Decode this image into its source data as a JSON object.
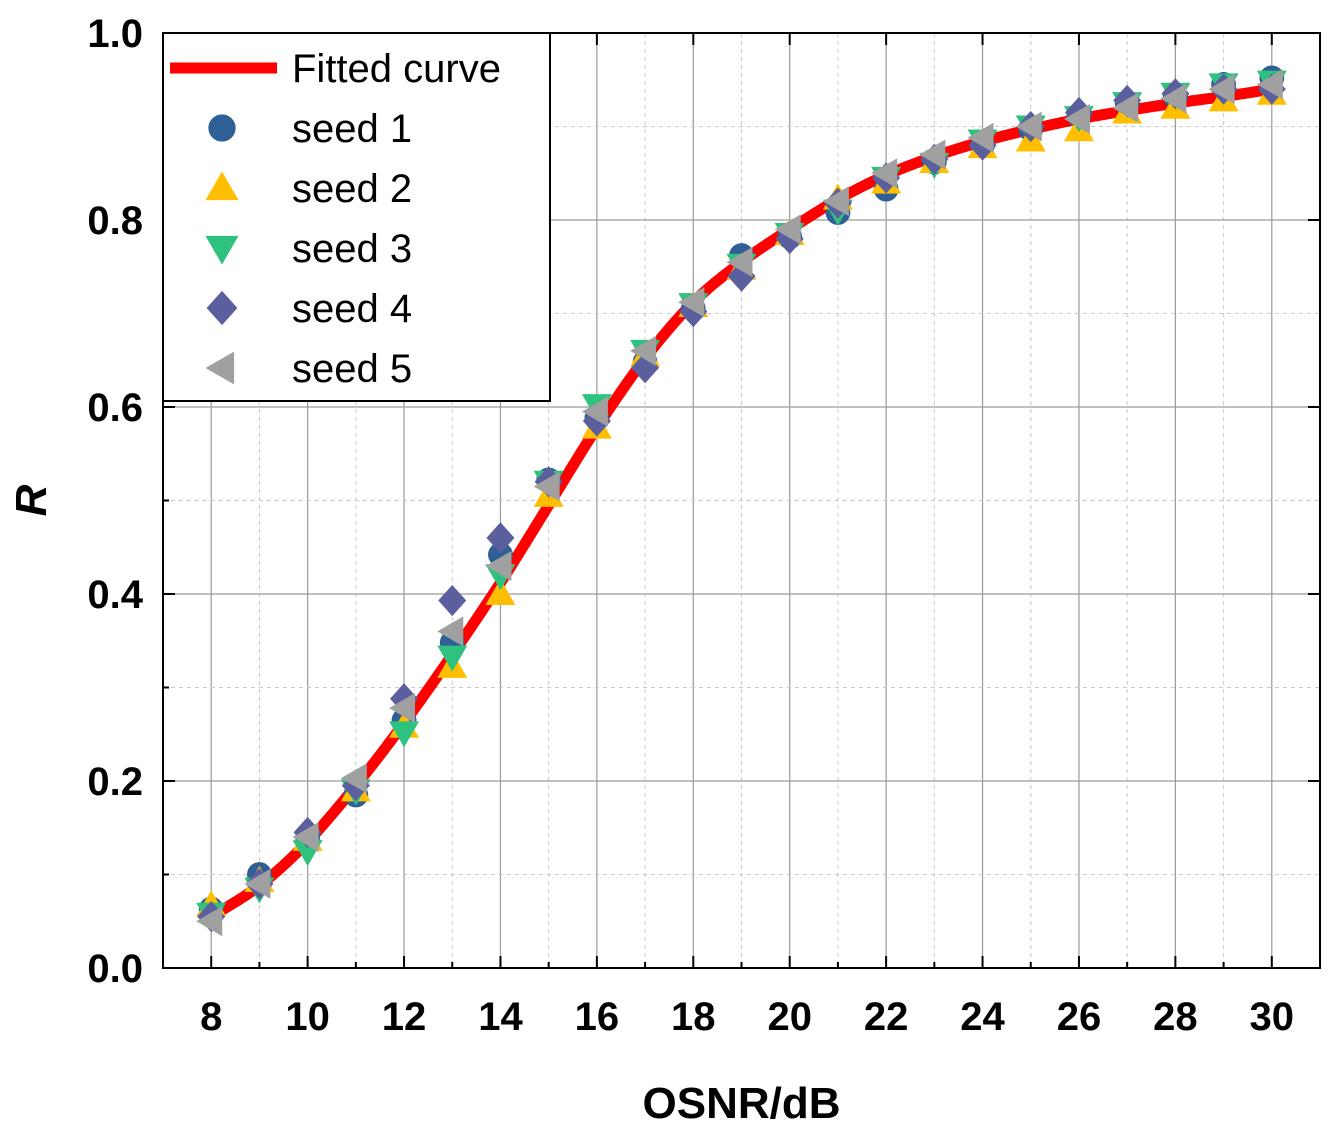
{
  "chart_data": {
    "type": "scatter",
    "title": "",
    "xlabel": "OSNR/dB",
    "ylabel": "R",
    "xlim": [
      7,
      31
    ],
    "ylim": [
      0,
      1.0
    ],
    "xticks": [
      "8",
      "10",
      "12",
      "14",
      "16",
      "18",
      "20",
      "22",
      "24",
      "26",
      "28",
      "30"
    ],
    "yticks": [
      "0.0",
      "0.2",
      "0.4",
      "0.6",
      "0.8",
      "1.0"
    ],
    "grid": true,
    "legend_position": "top-left",
    "x": [
      8,
      9,
      10,
      11,
      12,
      13,
      14,
      15,
      16,
      17,
      18,
      19,
      20,
      21,
      22,
      23,
      24,
      25,
      26,
      27,
      28,
      29,
      30
    ],
    "fitted_curve": {
      "name": "Fitted curve",
      "color": "#ff0000",
      "values": [
        0.055,
        0.088,
        0.135,
        0.195,
        0.262,
        0.335,
        0.412,
        0.495,
        0.578,
        0.652,
        0.712,
        0.755,
        0.79,
        0.822,
        0.848,
        0.868,
        0.884,
        0.897,
        0.908,
        0.917,
        0.925,
        0.932,
        0.94
      ]
    },
    "series": [
      {
        "name": "seed 1",
        "marker": "circle",
        "color": "#2f5f94",
        "values": [
          0.063,
          0.1,
          0.14,
          0.185,
          0.265,
          0.348,
          0.442,
          0.522,
          0.588,
          0.648,
          0.705,
          0.762,
          0.782,
          0.808,
          0.833,
          0.862,
          0.88,
          0.897,
          0.912,
          0.925,
          0.932,
          0.945,
          0.952
        ]
      },
      {
        "name": "seed 2",
        "marker": "triangle-up",
        "color": "#ffbf00",
        "values": [
          0.067,
          0.093,
          0.137,
          0.19,
          0.258,
          0.322,
          0.4,
          0.505,
          0.578,
          0.655,
          0.708,
          0.748,
          0.785,
          0.823,
          0.84,
          0.862,
          0.878,
          0.885,
          0.896,
          0.915,
          0.92,
          0.928,
          0.935
        ]
      },
      {
        "name": "seed 3",
        "marker": "triangle-down",
        "color": "#2ec27e",
        "values": [
          0.058,
          0.085,
          0.125,
          0.19,
          0.252,
          0.333,
          0.42,
          0.52,
          0.602,
          0.66,
          0.71,
          0.752,
          0.785,
          0.81,
          0.845,
          0.86,
          0.885,
          0.9,
          0.91,
          0.925,
          0.935,
          0.945,
          0.948
        ]
      },
      {
        "name": "seed 4",
        "marker": "diamond",
        "color": "#5b5f9e",
        "values": [
          0.055,
          0.09,
          0.145,
          0.195,
          0.288,
          0.393,
          0.46,
          0.52,
          0.585,
          0.642,
          0.702,
          0.74,
          0.78,
          0.818,
          0.845,
          0.865,
          0.88,
          0.9,
          0.915,
          0.928,
          0.935,
          0.94,
          0.94
        ]
      },
      {
        "name": "seed 5",
        "marker": "triangle-left",
        "color": "#a0a0a0",
        "values": [
          0.05,
          0.09,
          0.14,
          0.203,
          0.278,
          0.36,
          0.43,
          0.515,
          0.595,
          0.66,
          0.712,
          0.755,
          0.79,
          0.82,
          0.85,
          0.87,
          0.888,
          0.9,
          0.908,
          0.92,
          0.93,
          0.94,
          0.945
        ]
      }
    ]
  }
}
